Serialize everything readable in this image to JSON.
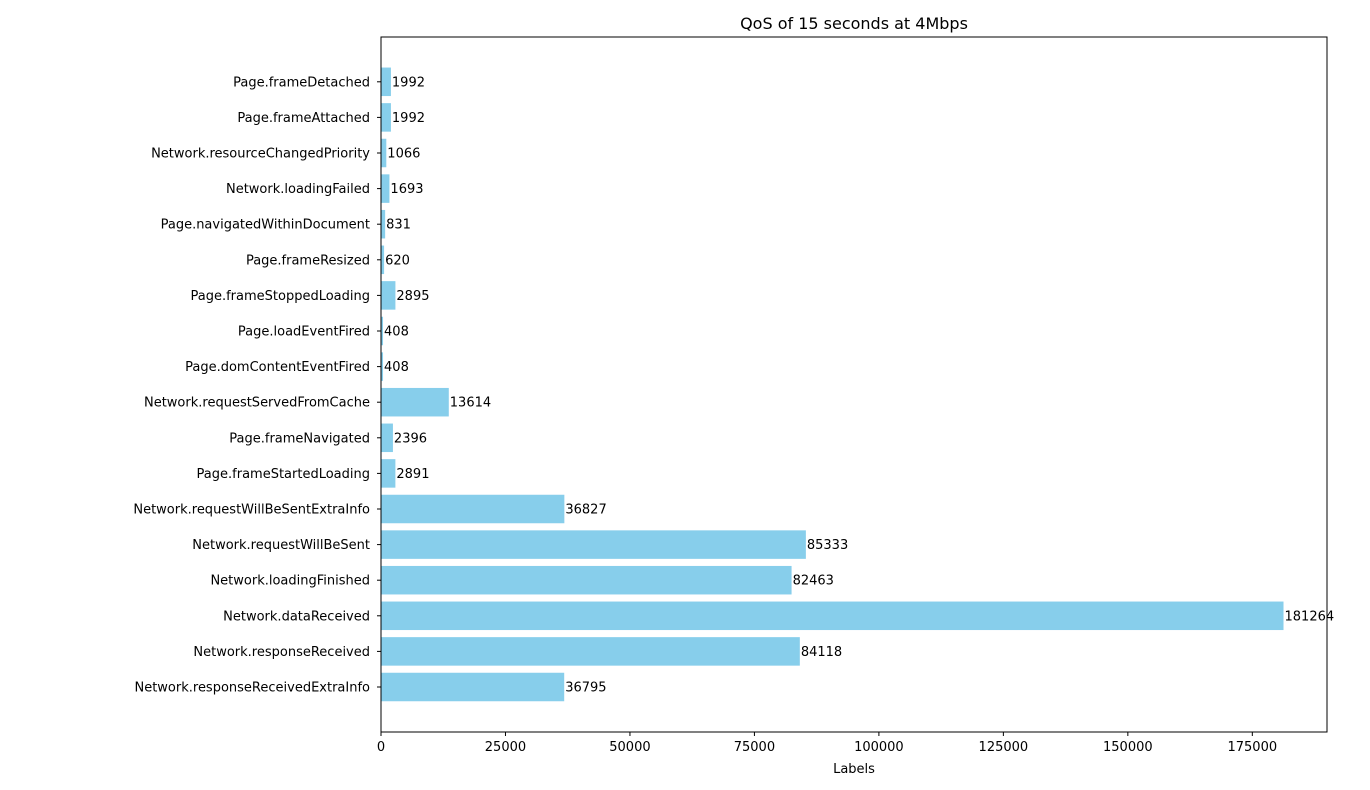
{
  "chart_data": {
    "type": "bar",
    "orientation": "horizontal",
    "title": "QoS of 15 seconds at 4Mbps",
    "xlabel": "Labels",
    "ylabel": "",
    "xlim": [
      0,
      190000
    ],
    "xticks": [
      0,
      25000,
      50000,
      75000,
      100000,
      125000,
      150000,
      175000
    ],
    "bar_color": "#87ceeb",
    "grid": false,
    "categories": [
      "Network.responseReceivedExtraInfo",
      "Network.responseReceived",
      "Network.dataReceived",
      "Network.loadingFinished",
      "Network.requestWillBeSent",
      "Network.requestWillBeSentExtraInfo",
      "Page.frameStartedLoading",
      "Page.frameNavigated",
      "Network.requestServedFromCache",
      "Page.domContentEventFired",
      "Page.loadEventFired",
      "Page.frameStoppedLoading",
      "Page.frameResized",
      "Page.navigatedWithinDocument",
      "Network.loadingFailed",
      "Network.resourceChangedPriority",
      "Page.frameAttached",
      "Page.frameDetached"
    ],
    "values": [
      36795,
      84118,
      181264,
      82463,
      85333,
      36827,
      2891,
      2396,
      13614,
      408,
      408,
      2895,
      620,
      831,
      1693,
      1066,
      1992,
      1992
    ]
  }
}
